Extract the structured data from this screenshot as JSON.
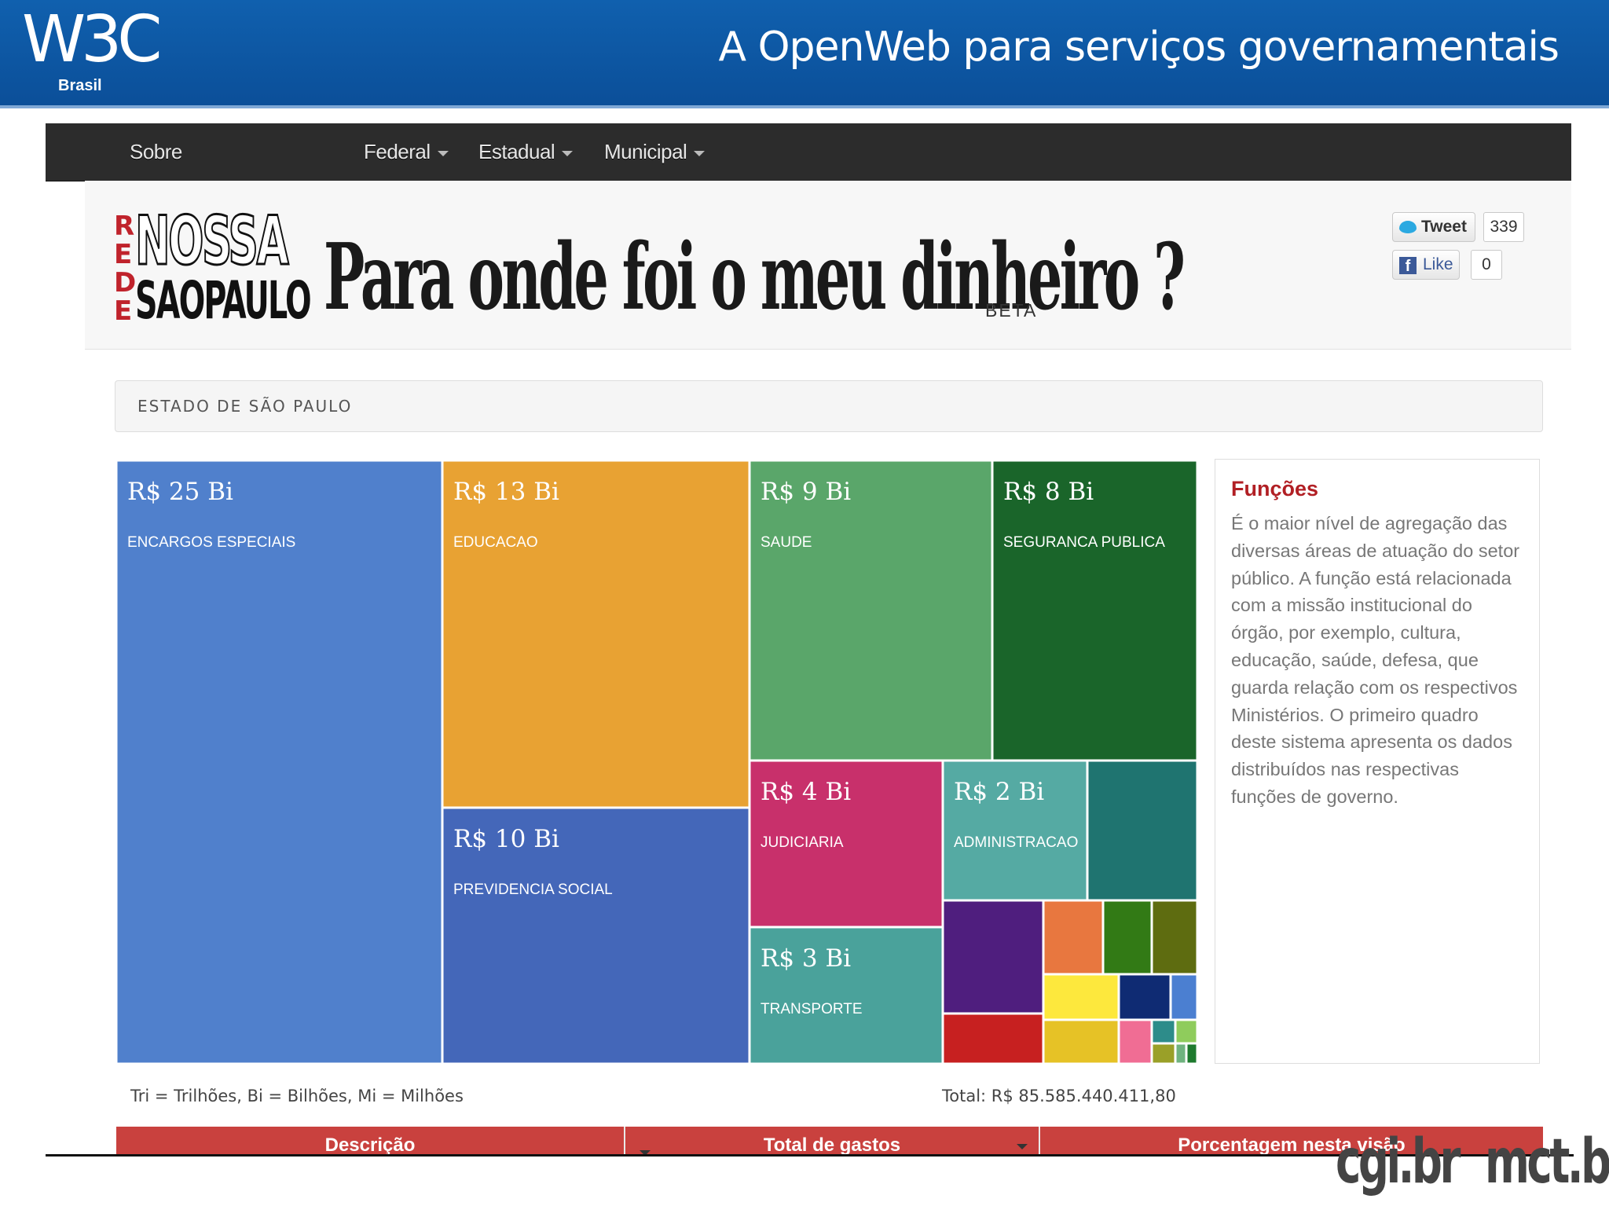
{
  "slide": {
    "logo_text": "W3C",
    "logo_sub": "Brasil",
    "title": "A OpenWeb para serviços governamentais"
  },
  "nav": {
    "items": [
      {
        "label": "Sobre"
      },
      {
        "label": "Federal"
      },
      {
        "label": "Estadual"
      },
      {
        "label": "Municipal"
      }
    ]
  },
  "site": {
    "logo_side": "REDE",
    "logo_line1": "NOSSA",
    "logo_line2": "SAOPAULO",
    "headline": "Para onde foi o meu dinheiro ?",
    "beta": "BETA"
  },
  "social": {
    "tweet_label": "Tweet",
    "tweet_count": "339",
    "like_label": "Like",
    "like_count": "0"
  },
  "breadcrumb": "ESTADO DE SÃO PAULO",
  "chart_data": {
    "type": "treemap",
    "unit": "R$",
    "items": [
      {
        "value_label": "R$ 25 Bi",
        "name": "ENCARGOS ESPECIAIS",
        "value": 25,
        "color": "#5080cc"
      },
      {
        "value_label": "R$ 13 Bi",
        "name": "EDUCACAO",
        "value": 13,
        "color": "#e8a233"
      },
      {
        "value_label": "R$ 10 Bi",
        "name": "PREVIDENCIA SOCIAL",
        "value": 10,
        "color": "#4467b9"
      },
      {
        "value_label": "R$ 9 Bi",
        "name": "SAUDE",
        "value": 9,
        "color": "#5aa66a"
      },
      {
        "value_label": "R$ 8 Bi",
        "name": "SEGURANCA PUBLICA",
        "value": 8,
        "color": "#1a652a"
      },
      {
        "value_label": "R$ 4 Bi",
        "name": "JUDICIARIA",
        "value": 4,
        "color": "#c8306b"
      },
      {
        "value_label": "R$ 3 Bi",
        "name": "TRANSPORTE",
        "value": 3,
        "color": "#4aa29b"
      },
      {
        "value_label": "R$ 2 Bi",
        "name": "ADMINISTRACAO",
        "value": 2,
        "color": "#55aaa3"
      }
    ],
    "unlabeled_colors": [
      "#1f7470",
      "#4f1e7e",
      "#e8773f",
      "#327a15",
      "#5e6c10",
      "#fde83d",
      "#0f2b73",
      "#4b7fd1",
      "#c72020",
      "#e6c226",
      "#f06d94",
      "#2d8c8a",
      "#8fcc5c",
      "#9aa028",
      "#6fb37f",
      "#1e7a2e"
    ]
  },
  "info_panel": {
    "title": "Funções",
    "text": "É o maior nível de agregação das diversas áreas de atuação do setor público. A função está relacionada com a missão institucional do órgão, por exemplo, cultura, educação, saúde, defesa, que guarda relação com os respectivos Ministérios. O primeiro quadro deste sistema apresenta os dados distribuídos nas respectivas funções de governo."
  },
  "legend": {
    "units": "Tri = Trilhões, Bi = Bilhões, Mi = Milhões",
    "total": "Total: R$ 85.585.440.411,80"
  },
  "table": {
    "headers": [
      "Descrição",
      "Total de gastos",
      "Porcentagem nesta visão"
    ]
  },
  "footer": {
    "logo_left": "cgi.br",
    "logo_right": "mct.br"
  }
}
